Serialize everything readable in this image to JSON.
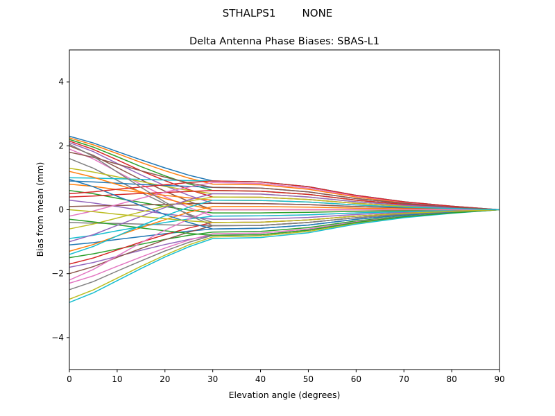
{
  "chart_data": {
    "type": "line",
    "suptitle": "STHALPS1        NONE",
    "title": "Delta Antenna Phase Biases: SBAS-L1",
    "xlabel": "Elevation angle (degrees)",
    "ylabel": "Bias from mean (mm)",
    "xlim": [
      0,
      90
    ],
    "ylim": [
      -5,
      5
    ],
    "xticks": [
      "0",
      "10",
      "20",
      "30",
      "40",
      "50",
      "60",
      "70",
      "80",
      "90"
    ],
    "yticks": [
      "−4",
      "−2",
      "0",
      "2",
      "4"
    ],
    "grid": false,
    "colors": [
      "#1f77b4",
      "#ff7f0e",
      "#2ca02c",
      "#d62728",
      "#9467bd",
      "#8c564b",
      "#e377c2",
      "#7f7f7f",
      "#bcbd22",
      "#17becf"
    ],
    "x": [
      0,
      5,
      10,
      15,
      20,
      25,
      30,
      40,
      50,
      60,
      70,
      80,
      90
    ],
    "series": [
      {
        "values": [
          2.3,
          2.09,
          1.82,
          1.56,
          1.31,
          1.08,
          0.9,
          0.87,
          0.72,
          0.45,
          0.25,
          0.11,
          0
        ]
      },
      {
        "values": [
          2.25,
          2.03,
          1.76,
          1.48,
          1.22,
          0.99,
          0.8,
          0.78,
          0.64,
          0.4,
          0.22,
          0.1,
          0
        ]
      },
      {
        "values": [
          2.2,
          1.96,
          1.66,
          1.35,
          1.06,
          0.81,
          0.6,
          0.58,
          0.48,
          0.3,
          0.17,
          0.07,
          0
        ]
      },
      {
        "values": [
          2.15,
          1.89,
          1.56,
          1.22,
          0.91,
          0.63,
          0.4,
          0.39,
          0.32,
          0.2,
          0.11,
          0.05,
          0
        ]
      },
      {
        "values": [
          2.1,
          1.82,
          1.45,
          1.09,
          0.75,
          0.45,
          0.2,
          0.19,
          0.16,
          0.1,
          0.06,
          0.02,
          0
        ]
      },
      {
        "values": [
          2.0,
          1.7,
          1.32,
          0.94,
          0.58,
          0.26,
          0,
          0,
          0,
          0,
          0,
          0,
          0
        ]
      },
      {
        "values": [
          1.9,
          1.59,
          1.19,
          0.79,
          0.41,
          0.07,
          -0.2,
          -0.19,
          -0.16,
          -0.1,
          -0.06,
          -0.02,
          0
        ]
      },
      {
        "values": [
          1.6,
          1.3,
          0.92,
          0.54,
          0.18,
          -0.14,
          -0.4,
          -0.39,
          -0.32,
          -0.2,
          -0.11,
          -0.05,
          0
        ]
      },
      {
        "values": [
          1.3,
          1.18,
          1.03,
          0.88,
          0.73,
          0.6,
          0.5,
          0.49,
          0.4,
          0.25,
          0.14,
          0.06,
          0
        ]
      },
      {
        "values": [
          1.0,
          0.99,
          0.97,
          0.95,
          0.93,
          0.91,
          0.9,
          0.87,
          0.72,
          0.45,
          0.25,
          0.11,
          0
        ]
      },
      {
        "values": [
          0.9,
          0.87,
          0.83,
          0.79,
          0.76,
          0.73,
          0.7,
          0.68,
          0.56,
          0.35,
          0.2,
          0.08,
          0
        ]
      },
      {
        "values": [
          0.8,
          0.73,
          0.63,
          0.54,
          0.45,
          0.37,
          0.3,
          0.29,
          0.24,
          0.15,
          0.08,
          0.04,
          0
        ]
      },
      {
        "values": [
          0.6,
          0.5,
          0.36,
          0.23,
          0.1,
          -0.01,
          -0.1,
          -0.1,
          -0.08,
          -0.05,
          -0.03,
          -0.01,
          0
        ]
      },
      {
        "values": [
          0.4,
          0.43,
          0.47,
          0.51,
          0.54,
          0.57,
          0.6,
          0.58,
          0.48,
          0.3,
          0.17,
          0.07,
          0
        ]
      },
      {
        "values": [
          0.3,
          0.21,
          0.1,
          -0.02,
          -0.13,
          -0.22,
          -0.3,
          -0.29,
          -0.24,
          -0.15,
          -0.08,
          -0.04,
          0
        ]
      },
      {
        "values": [
          0.1,
          0.12,
          0.13,
          0.15,
          0.17,
          0.19,
          0.2,
          0.19,
          0.16,
          0.1,
          0.06,
          0.02,
          0
        ]
      },
      {
        "values": [
          -0.2,
          -0.04,
          0.16,
          0.36,
          0.55,
          0.71,
          0.85,
          0.82,
          0.68,
          0.43,
          0.24,
          0.1,
          0
        ]
      },
      {
        "values": [
          -0.4,
          -0.42,
          -0.43,
          -0.45,
          -0.47,
          -0.49,
          -0.5,
          -0.49,
          -0.4,
          -0.25,
          -0.14,
          -0.06,
          0
        ]
      },
      {
        "values": [
          -0.6,
          -0.45,
          -0.26,
          -0.07,
          0.11,
          0.27,
          0.4,
          0.39,
          0.32,
          0.2,
          0.11,
          0.05,
          0
        ]
      },
      {
        "values": [
          -0.9,
          -0.8,
          -0.66,
          -0.53,
          -0.4,
          -0.29,
          -0.2,
          -0.19,
          -0.16,
          -0.1,
          -0.06,
          -0.02,
          0
        ]
      },
      {
        "values": [
          -1.1,
          -1.03,
          -0.93,
          -0.84,
          -0.75,
          -0.67,
          -0.6,
          -0.58,
          -0.48,
          -0.3,
          -0.17,
          -0.07,
          0
        ]
      },
      {
        "values": [
          -1.3,
          -1.09,
          -0.82,
          -0.56,
          -0.31,
          -0.08,
          0.1,
          0.1,
          0.08,
          0.05,
          0.03,
          0.01,
          0
        ]
      },
      {
        "values": [
          -1.5,
          -1.38,
          -1.23,
          -1.08,
          -0.93,
          -0.8,
          -0.7,
          -0.68,
          -0.56,
          -0.35,
          -0.2,
          -0.08,
          0
        ]
      },
      {
        "values": [
          -1.7,
          -1.51,
          -1.26,
          -1.01,
          -0.78,
          -0.57,
          -0.4,
          -0.39,
          -0.32,
          -0.2,
          -0.11,
          -0.05,
          0
        ]
      },
      {
        "values": [
          -1.8,
          -1.65,
          -1.46,
          -1.27,
          -1.09,
          -0.93,
          -0.8,
          -0.78,
          -0.64,
          -0.4,
          -0.22,
          -0.1,
          0
        ]
      },
      {
        "values": [
          -2.0,
          -1.78,
          -1.49,
          -1.21,
          -0.94,
          -0.7,
          -0.5,
          -0.49,
          -0.4,
          -0.25,
          -0.14,
          -0.06,
          0
        ]
      },
      {
        "values": [
          -2.3,
          -2.07,
          -1.77,
          -1.48,
          -1.2,
          -0.95,
          -0.75,
          -0.73,
          -0.6,
          -0.38,
          -0.21,
          -0.09,
          0
        ]
      },
      {
        "values": [
          -2.5,
          -2.25,
          -1.92,
          -1.6,
          -1.29,
          -1.02,
          -0.8,
          -0.78,
          -0.64,
          -0.4,
          -0.22,
          -0.1,
          0
        ]
      },
      {
        "values": [
          -2.8,
          -2.51,
          -2.14,
          -1.77,
          -1.42,
          -1.1,
          -0.85,
          -0.82,
          -0.68,
          -0.43,
          -0.24,
          -0.1,
          0
        ]
      },
      {
        "values": [
          -2.9,
          -2.6,
          -2.22,
          -1.84,
          -1.48,
          -1.16,
          -0.9,
          -0.87,
          -0.72,
          -0.45,
          -0.25,
          -0.11,
          0
        ]
      },
      {
        "values": [
          0.95,
          0.72,
          0.42,
          0.13,
          -0.15,
          -0.4,
          -0.6,
          -0.58,
          -0.48,
          -0.3,
          -0.17,
          -0.07,
          0
        ]
      },
      {
        "values": [
          1.2,
          1.02,
          0.79,
          0.56,
          0.35,
          0.16,
          0,
          0,
          0,
          0,
          0,
          0,
          0
        ]
      },
      {
        "values": [
          -0.3,
          -0.38,
          -0.47,
          -0.57,
          -0.66,
          -0.74,
          -0.8,
          -0.78,
          -0.64,
          -0.4,
          -0.22,
          -0.1,
          0
        ]
      },
      {
        "values": [
          0.5,
          0.56,
          0.64,
          0.71,
          0.78,
          0.85,
          0.9,
          0.87,
          0.72,
          0.45,
          0.25,
          0.11,
          0
        ]
      },
      {
        "values": [
          -1.0,
          -0.78,
          -0.49,
          -0.21,
          0.07,
          0.31,
          0.5,
          0.49,
          0.4,
          0.25,
          0.14,
          0.06,
          0
        ]
      },
      {
        "values": [
          1.8,
          1.64,
          1.43,
          1.22,
          1.02,
          0.84,
          0.7,
          0.68,
          0.56,
          0.35,
          0.2,
          0.08,
          0
        ]
      },
      {
        "values": [
          -2.2,
          -1.87,
          -1.45,
          -1.03,
          -0.64,
          -0.29,
          0,
          0,
          0,
          0,
          0,
          0,
          0
        ]
      },
      {
        "values": [
          2.05,
          1.67,
          1.18,
          0.7,
          0.24,
          -0.17,
          -0.5,
          -0.49,
          -0.4,
          -0.25,
          -0.14,
          -0.06,
          0
        ]
      },
      {
        "values": [
          0,
          -0.06,
          -0.14,
          -0.21,
          -0.28,
          -0.35,
          -0.4,
          -0.39,
          -0.32,
          -0.2,
          -0.11,
          -0.05,
          0
        ]
      },
      {
        "values": [
          -1.4,
          -1.15,
          -0.82,
          -0.5,
          -0.19,
          0.08,
          0.3,
          0.29,
          0.24,
          0.15,
          0.08,
          0.04,
          0
        ]
      }
    ]
  }
}
